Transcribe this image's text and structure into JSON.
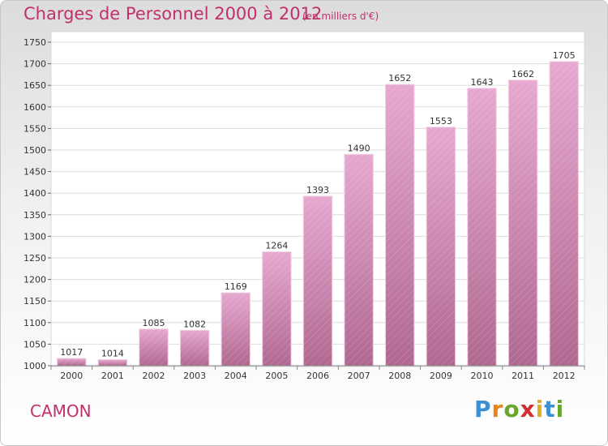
{
  "page": {
    "title": "Charges de Personnel 2000 à 2012",
    "subtitle": "(en milliers d'€)",
    "place": "CAMON",
    "brand": {
      "letters": [
        "P",
        "r",
        "o",
        "x",
        "i",
        "t",
        "i"
      ],
      "colors": [
        "#3c8fd0",
        "#e8841a",
        "#6aa62c",
        "#d03030",
        "#e0b020",
        "#3c8fd0",
        "#6aa62c"
      ]
    }
  },
  "chart_data": {
    "type": "bar",
    "categories": [
      "2000",
      "2001",
      "2002",
      "2003",
      "2004",
      "2005",
      "2006",
      "2007",
      "2008",
      "2009",
      "2010",
      "2011",
      "2012"
    ],
    "values": [
      1017,
      1014,
      1085,
      1082,
      1169,
      1264,
      1393,
      1490,
      1652,
      1553,
      1643,
      1662,
      1705
    ],
    "ylim": [
      1000,
      1750
    ],
    "yticks": [
      1000,
      1050,
      1100,
      1150,
      1200,
      1250,
      1300,
      1350,
      1400,
      1450,
      1500,
      1550,
      1600,
      1650,
      1700,
      1750
    ],
    "grid": true,
    "bar_color_top": "#e6a8cf",
    "bar_color_bottom": "#b06890"
  }
}
